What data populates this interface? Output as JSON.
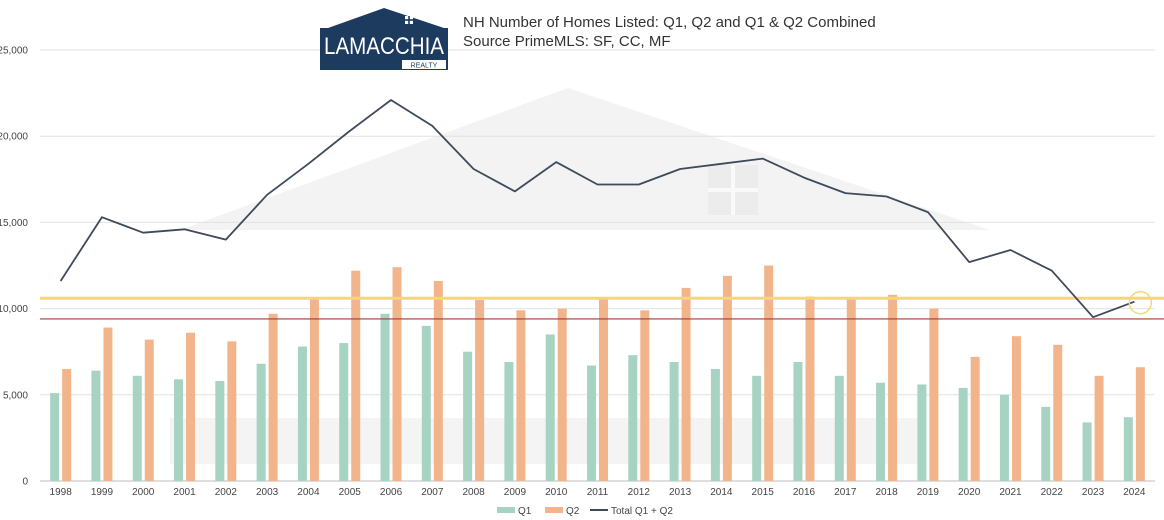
{
  "colors": {
    "q1": "#a7d3c3",
    "q2": "#f2b48a",
    "total": "#3f4a5a",
    "yellow": "#f6d873",
    "red": "#a53a3a",
    "grid": "#e2e2e2",
    "logo_navy": "#1d3a5f",
    "watermark": "#f1f1f1"
  },
  "logo": {
    "name": "LAMACCHIA",
    "sub": "REALTY",
    "icon": "house-logo-icon"
  },
  "chart_data": {
    "type": "bar",
    "title": "NH Number of Homes Listed: Q1, Q2 and Q1 & Q2 Combined",
    "subtitle": "Source PrimeMLS: SF, CC, MF",
    "xlabel": "",
    "ylabel": "",
    "ylim": [
      0,
      25000
    ],
    "yticks": [
      0,
      5000,
      10000,
      15000,
      20000,
      25000
    ],
    "ytick_labels": [
      "0",
      "5,000",
      "10,000",
      "15,000",
      "20,000",
      "25,000"
    ],
    "grid": true,
    "legend_position": "bottom",
    "categories": [
      "1998",
      "1999",
      "2000",
      "2001",
      "2002",
      "2003",
      "2004",
      "2005",
      "2006",
      "2007",
      "2008",
      "2009",
      "2010",
      "2011",
      "2012",
      "2013",
      "2014",
      "2015",
      "2016",
      "2017",
      "2018",
      "2019",
      "2020",
      "2021",
      "2022",
      "2023",
      "2024"
    ],
    "series": [
      {
        "name": "Q1",
        "type": "bar",
        "values": [
          5100,
          6400,
          6100,
          5900,
          5800,
          6800,
          7800,
          8000,
          9700,
          9000,
          7500,
          6900,
          8500,
          6700,
          7300,
          6900,
          6500,
          6100,
          6900,
          6100,
          5700,
          5600,
          5400,
          5000,
          4300,
          3400,
          3700
        ]
      },
      {
        "name": "Q2",
        "type": "bar",
        "values": [
          6500,
          8900,
          8200,
          8600,
          8100,
          9700,
          10600,
          12200,
          12400,
          11600,
          10500,
          9900,
          10000,
          10600,
          9900,
          11200,
          11900,
          12500,
          10700,
          10600,
          10800,
          10000,
          7200,
          8400,
          7900,
          6100,
          6600
        ]
      },
      {
        "name": "Total Q1 + Q2",
        "type": "line",
        "values": [
          11600,
          15300,
          14400,
          14600,
          14000,
          16600,
          18400,
          20300,
          22100,
          20600,
          18100,
          16800,
          18500,
          17200,
          17200,
          18100,
          18400,
          18700,
          17600,
          16700,
          16500,
          15600,
          12700,
          13400,
          12200,
          9500,
          10400
        ]
      }
    ],
    "reference_lines": [
      {
        "value": 10600
      },
      {
        "value": 9400
      }
    ]
  }
}
